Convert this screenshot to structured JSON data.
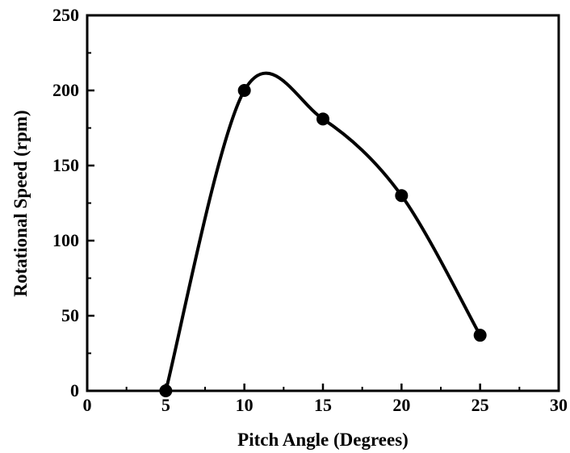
{
  "chart_data": {
    "type": "line",
    "title": "",
    "xlabel": "Pitch Angle (Degrees)",
    "ylabel": "Rotational Speed (rpm)",
    "xlim": [
      0,
      30
    ],
    "ylim": [
      0,
      250
    ],
    "x_ticks": [
      "0",
      "5",
      "10",
      "15",
      "20",
      "25",
      "30"
    ],
    "y_ticks": [
      "0",
      "50",
      "100",
      "150",
      "200",
      "250"
    ],
    "x_tick_values": [
      0,
      5,
      10,
      15,
      20,
      25,
      30
    ],
    "y_tick_values": [
      0,
      50,
      100,
      150,
      200,
      250
    ],
    "x_minor_ticks": [
      2.5,
      7.5,
      12.5,
      17.5,
      22.5,
      27.5
    ],
    "y_minor_ticks": [
      25,
      75,
      125,
      175,
      225
    ],
    "grid": false,
    "legend": "none",
    "line_style": "smooth",
    "colors": {
      "line": "#000000",
      "marker": "#000000",
      "axis": "#000000"
    },
    "series": [
      {
        "x": [
          5,
          10,
          15,
          20,
          25
        ],
        "y": [
          0,
          200,
          181,
          130,
          37
        ]
      }
    ]
  }
}
